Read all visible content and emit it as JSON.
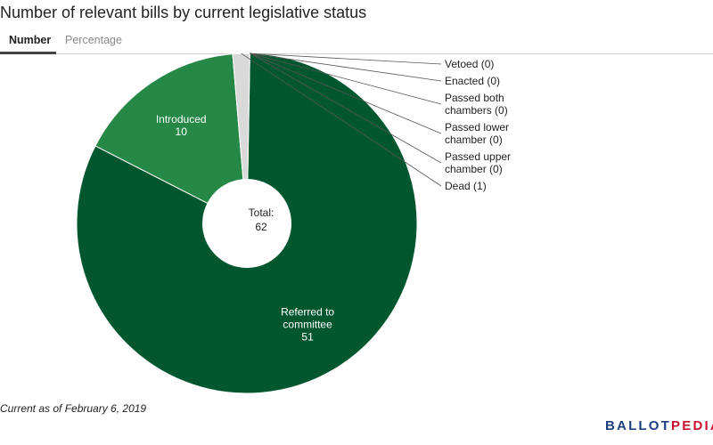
{
  "title": "Number of relevant bills by current legislative status",
  "tabs": [
    {
      "label": "Number",
      "active": true
    },
    {
      "label": "Percentage",
      "active": false
    }
  ],
  "chart_data": {
    "type": "pie",
    "title": "Number of relevant bills by current legislative status",
    "center_label": "Total:",
    "center_value": "62",
    "slices": [
      {
        "name": "Referred to committee",
        "value": 51,
        "color": "#02572f",
        "label_lines": [
          "Referred to",
          "committee"
        ]
      },
      {
        "name": "Introduced",
        "value": 10,
        "color": "#268847",
        "label_lines": [
          "Introduced"
        ]
      },
      {
        "name": "Dead",
        "value": 1,
        "color": "#d9d9d9",
        "label_lines": [
          "Dead (1)"
        ]
      },
      {
        "name": "Passed upper chamber",
        "value": 0,
        "color": "#a8d08d",
        "label_lines": [
          "Passed upper",
          "chamber (0)"
        ]
      },
      {
        "name": "Passed lower chamber",
        "value": 0,
        "color": "#6fb56f",
        "label_lines": [
          "Passed lower",
          "chamber (0)"
        ]
      },
      {
        "name": "Passed both chambers",
        "value": 0,
        "color": "#4a9a5a",
        "label_lines": [
          "Passed both",
          "chambers (0)"
        ]
      },
      {
        "name": "Enacted",
        "value": 0,
        "color": "#1e6b3d",
        "label_lines": [
          "Enacted (0)"
        ]
      },
      {
        "name": "Vetoed",
        "value": 0,
        "color": "#b0b0b0",
        "label_lines": [
          "Vetoed (0)"
        ]
      }
    ]
  },
  "footnote": "Current as of February 6, 2019",
  "logo": {
    "part1": "BALLOT",
    "part2": "PEDIA"
  }
}
